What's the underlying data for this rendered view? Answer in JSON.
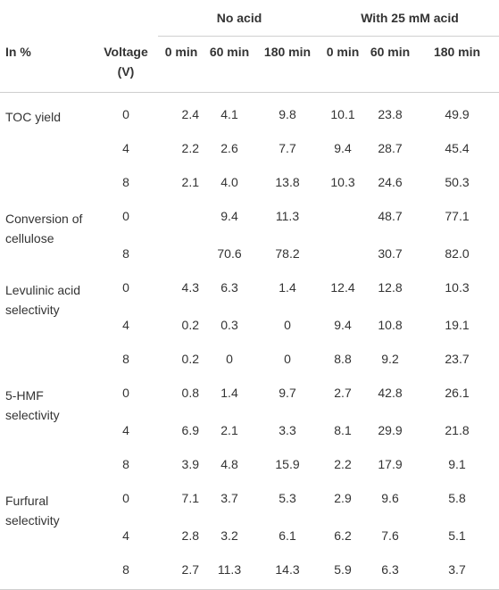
{
  "headers": {
    "group_no_acid": "No acid",
    "group_with_acid": "With 25 mM acid",
    "row_label": "In %",
    "voltage": "Voltage (V)",
    "times": [
      "0 min",
      "60 min",
      "180 min",
      "0 min",
      "60 min",
      "180 min"
    ]
  },
  "groups": [
    {
      "label": "TOC yield",
      "rows": [
        {
          "voltage": "0",
          "values": [
            "2.4",
            "4.1",
            "9.8",
            "10.1",
            "23.8",
            "49.9"
          ]
        },
        {
          "voltage": "4",
          "values": [
            "2.2",
            "2.6",
            "7.7",
            "9.4",
            "28.7",
            "45.4"
          ]
        },
        {
          "voltage": "8",
          "values": [
            "2.1",
            "4.0",
            "13.8",
            "10.3",
            "24.6",
            "50.3"
          ]
        }
      ]
    },
    {
      "label": "Conversion of cellulose",
      "rows": [
        {
          "voltage": "0",
          "values": [
            "",
            "9.4",
            "11.3",
            "",
            "48.7",
            "77.1"
          ]
        },
        {
          "voltage": "8",
          "values": [
            "",
            "70.6",
            "78.2",
            "",
            "30.7",
            "82.0"
          ]
        }
      ]
    },
    {
      "label": "Levulinic acid selectivity",
      "rows": [
        {
          "voltage": "0",
          "values": [
            "4.3",
            "6.3",
            "1.4",
            "12.4",
            "12.8",
            "10.3"
          ]
        },
        {
          "voltage": "4",
          "values": [
            "0.2",
            "0.3",
            "0",
            "9.4",
            "10.8",
            "19.1"
          ]
        },
        {
          "voltage": "8",
          "values": [
            "0.2",
            "0",
            "0",
            "8.8",
            "9.2",
            "23.7"
          ]
        }
      ]
    },
    {
      "label": "5-HMF selectivity",
      "rows": [
        {
          "voltage": "0",
          "values": [
            "0.8",
            "1.4",
            "9.7",
            "2.7",
            "42.8",
            "26.1"
          ]
        },
        {
          "voltage": "4",
          "values": [
            "6.9",
            "2.1",
            "3.3",
            "8.1",
            "29.9",
            "21.8"
          ]
        },
        {
          "voltage": "8",
          "values": [
            "3.9",
            "4.8",
            "15.9",
            "2.2",
            "17.9",
            "9.1"
          ]
        }
      ]
    },
    {
      "label": "Furfural selectivity",
      "rows": [
        {
          "voltage": "0",
          "values": [
            "7.1",
            "3.7",
            "5.3",
            "2.9",
            "9.6",
            "5.8"
          ]
        },
        {
          "voltage": "4",
          "values": [
            "2.8",
            "3.2",
            "6.1",
            "6.2",
            "7.6",
            "5.1"
          ]
        },
        {
          "voltage": "8",
          "values": [
            "2.7",
            "11.3",
            "14.3",
            "5.9",
            "6.3",
            "3.7"
          ]
        }
      ]
    }
  ]
}
